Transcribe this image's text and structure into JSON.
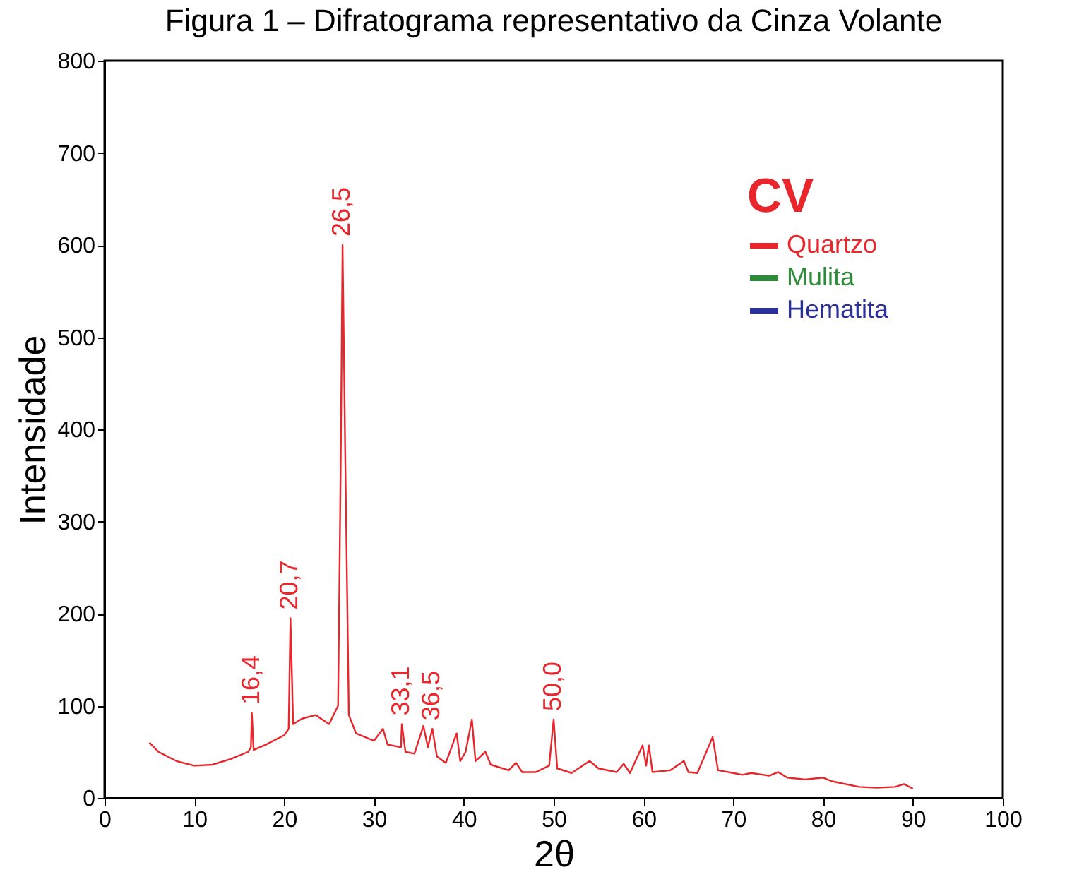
{
  "chart_data": {
    "type": "line",
    "title": "Figura 1 – Difratograma representativo da Cinza Volante",
    "xlabel": "2θ",
    "ylabel": "Intensidade",
    "legend_title": "CV",
    "legend": "top right",
    "marker": "none",
    "grid": false,
    "xlim": [
      0,
      100
    ],
    "xticks": [
      0,
      10,
      20,
      30,
      40,
      50,
      60,
      70,
      80,
      90,
      100
    ],
    "ylim": [
      0,
      800
    ],
    "yticks": [
      0,
      100,
      200,
      300,
      400,
      500,
      600,
      700,
      800
    ],
    "series": [
      {
        "name": "Quartzo",
        "color": "#e8262b",
        "x": [
          5,
          6,
          8,
          10,
          12,
          14,
          16,
          16.3,
          16.4,
          16.6,
          18,
          20,
          20.5,
          20.7,
          21,
          22,
          23.5,
          25,
          26,
          26.3,
          26.5,
          26.8,
          27.2,
          28,
          30,
          31,
          31.5,
          33,
          33.1,
          33.5,
          34.5,
          35.5,
          36,
          36.5,
          37,
          38,
          39.2,
          39.6,
          40.2,
          40.9,
          41.3,
          42.4,
          43,
          45,
          45.8,
          46.5,
          48,
          49.5,
          50,
          50.4,
          52,
          54,
          55,
          57,
          57.8,
          58.5,
          59.9,
          60.3,
          60.6,
          61,
          63,
          64.5,
          65,
          66,
          67.7,
          68.3,
          70,
          71,
          72,
          74,
          75,
          76,
          78,
          80,
          81,
          84,
          86,
          88,
          89,
          90
        ],
        "values": [
          60,
          50,
          40,
          35,
          36,
          42,
          50,
          55,
          92,
          52,
          58,
          68,
          75,
          195,
          80,
          86,
          90,
          80,
          100,
          370,
          600,
          370,
          90,
          70,
          62,
          75,
          58,
          55,
          80,
          50,
          48,
          78,
          55,
          75,
          45,
          38,
          70,
          40,
          50,
          85,
          40,
          50,
          36,
          30,
          38,
          28,
          28,
          35,
          85,
          32,
          27,
          40,
          32,
          28,
          37,
          27,
          57,
          35,
          57,
          28,
          30,
          40,
          28,
          27,
          66,
          30,
          27,
          25,
          27,
          24,
          28,
          22,
          20,
          22,
          18,
          12,
          11,
          12,
          15,
          10
        ]
      },
      {
        "name": "Mulita",
        "color": "#2e8b3a"
      },
      {
        "name": "Hematita",
        "color": "#2a2f9a"
      }
    ],
    "annotations": [
      {
        "text": "16,4",
        "x": 16.4,
        "y": 92
      },
      {
        "text": "20,7",
        "x": 20.7,
        "y": 195
      },
      {
        "text": "26,5",
        "x": 26.5,
        "y": 600
      },
      {
        "text": "33,1",
        "x": 33.1,
        "y": 80
      },
      {
        "text": "36,5",
        "x": 36.5,
        "y": 75
      },
      {
        "text": "50,0",
        "x": 50,
        "y": 85
      }
    ]
  }
}
